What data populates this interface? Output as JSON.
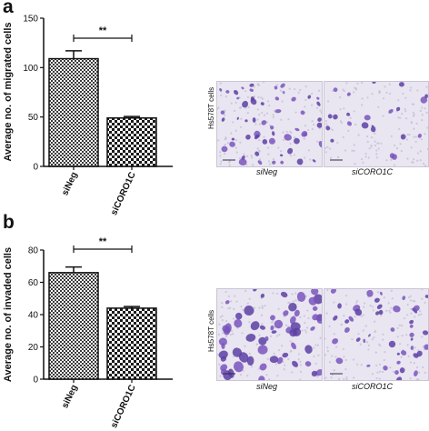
{
  "panels": {
    "a": {
      "letter": "a",
      "ylabel": "Average no. of migrated cells",
      "significance": "**",
      "cell_line": "Hs578T cells",
      "image_labels": [
        "siNeg",
        "siCORO1C"
      ]
    },
    "b": {
      "letter": "b",
      "ylabel": "Average no. of invaded cells",
      "significance": "**",
      "cell_line": "Hs578T cells",
      "image_labels": [
        "siNeg",
        "siCORO1C"
      ]
    }
  },
  "chart_data": [
    {
      "type": "bar",
      "categories": [
        "siNeg",
        "siCORO1C"
      ],
      "values": [
        109,
        49
      ],
      "errors": [
        8,
        1.5
      ],
      "ylabel": "Average no. of migrated cells",
      "ylim": [
        0,
        150
      ],
      "yticks": [
        0,
        50,
        100,
        150
      ],
      "significance": "**",
      "grid": false,
      "bar_patterns": [
        "checker-fine",
        "checker-coarse"
      ]
    },
    {
      "type": "bar",
      "categories": [
        "siNeg",
        "siCORO1C"
      ],
      "values": [
        66,
        44
      ],
      "errors": [
        3.5,
        1
      ],
      "ylabel": "Average no. of invaded cells",
      "ylim": [
        0,
        80
      ],
      "yticks": [
        0,
        20,
        40,
        60,
        80
      ],
      "significance": "**",
      "grid": false,
      "bar_patterns": [
        "checker-fine",
        "checker-coarse"
      ]
    }
  ]
}
